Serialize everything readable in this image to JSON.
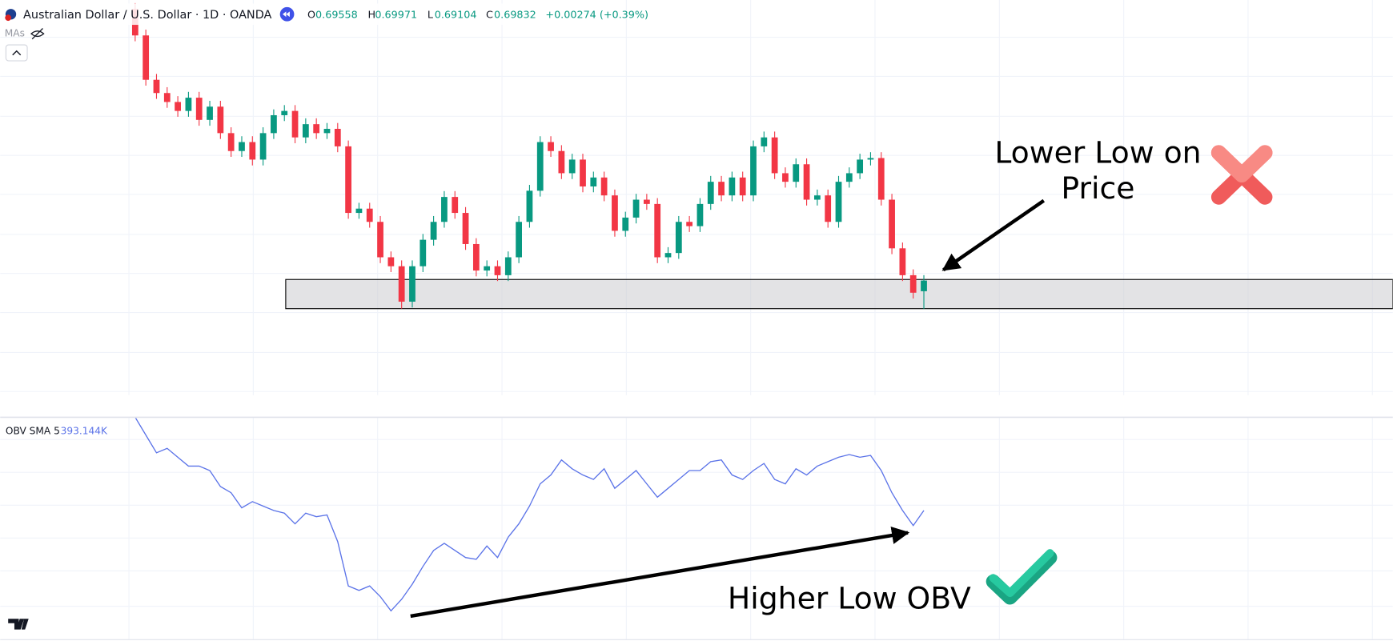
{
  "chart_data": [
    {
      "type": "candlestick",
      "title": "Australian Dollar / U.S. Dollar · 1D · OANDA",
      "indicator_label": "MAs",
      "ohlc_labels": [
        "O",
        "H",
        "L",
        "C"
      ],
      "change": "+0.00274 (+0.39%)",
      "up_color": "#089981",
      "down_color": "#f23645",
      "ylim": [
        0.6689,
        0.7704
      ],
      "grid": true,
      "open": [
        0.7681,
        0.7613,
        0.7499,
        0.7465,
        0.7442,
        0.7419,
        0.7453,
        0.7396,
        0.743,
        0.7362,
        0.7316,
        0.7339,
        0.7294,
        0.7362,
        0.7408,
        0.7419,
        0.7351,
        0.7385,
        0.7362,
        0.7373,
        0.7328,
        0.7157,
        0.7168,
        0.7134,
        0.7043,
        0.702,
        0.6929,
        0.702,
        0.7088,
        0.7134,
        0.7198,
        0.7157,
        0.7077,
        0.7009,
        0.702,
        0.6997,
        0.7043,
        0.7134,
        0.7214,
        0.7339,
        0.7316,
        0.7259,
        0.7294,
        0.7225,
        0.7248,
        0.7202,
        0.7111,
        0.7145,
        0.7191,
        0.718,
        0.7043,
        0.7054,
        0.7134,
        0.7123,
        0.718,
        0.7237,
        0.7202,
        0.7248,
        0.7202,
        0.7328,
        0.7351,
        0.7259,
        0.7237,
        0.7282,
        0.7191,
        0.7202,
        0.7134,
        0.7237,
        0.7259,
        0.7294,
        0.7298,
        0.7191,
        0.7066,
        0.6997,
        0.69558
      ],
      "high": [
        0.7696,
        0.7628,
        0.7514,
        0.748,
        0.7457,
        0.7468,
        0.7468,
        0.7445,
        0.7445,
        0.7377,
        0.7354,
        0.7354,
        0.7377,
        0.7423,
        0.7434,
        0.7434,
        0.74,
        0.74,
        0.7388,
        0.7388,
        0.7343,
        0.7183,
        0.7183,
        0.7149,
        0.7058,
        0.7035,
        0.7035,
        0.7103,
        0.7149,
        0.7213,
        0.7213,
        0.7172,
        0.7092,
        0.7035,
        0.7035,
        0.7058,
        0.7149,
        0.7229,
        0.7354,
        0.7354,
        0.7331,
        0.7309,
        0.7309,
        0.7263,
        0.7263,
        0.7217,
        0.716,
        0.7206,
        0.7206,
        0.7195,
        0.7069,
        0.7149,
        0.7149,
        0.7195,
        0.7252,
        0.7252,
        0.7263,
        0.7263,
        0.7343,
        0.7366,
        0.7366,
        0.7274,
        0.7297,
        0.7297,
        0.7217,
        0.7217,
        0.7252,
        0.7274,
        0.7309,
        0.7313,
        0.7313,
        0.7206,
        0.7081,
        0.7012,
        0.69971
      ],
      "low": [
        0.7598,
        0.7484,
        0.745,
        0.7427,
        0.7404,
        0.7404,
        0.7381,
        0.7381,
        0.7347,
        0.7301,
        0.7301,
        0.7279,
        0.7279,
        0.7347,
        0.7393,
        0.7336,
        0.7336,
        0.7347,
        0.7347,
        0.7313,
        0.7142,
        0.7142,
        0.7119,
        0.7028,
        0.7005,
        0.6911,
        0.6914,
        0.7005,
        0.7073,
        0.7119,
        0.7142,
        0.7062,
        0.6994,
        0.6994,
        0.6982,
        0.6982,
        0.7028,
        0.7119,
        0.7199,
        0.7301,
        0.7244,
        0.7244,
        0.721,
        0.721,
        0.7187,
        0.7096,
        0.7096,
        0.713,
        0.7165,
        0.7028,
        0.7028,
        0.7039,
        0.7108,
        0.7108,
        0.7165,
        0.7187,
        0.7187,
        0.7187,
        0.7187,
        0.7313,
        0.7244,
        0.7222,
        0.7222,
        0.7176,
        0.7176,
        0.7119,
        0.7119,
        0.7222,
        0.7244,
        0.7279,
        0.7176,
        0.7051,
        0.6982,
        0.6937,
        0.69104
      ],
      "close": [
        0.7613,
        0.7499,
        0.7465,
        0.7442,
        0.7419,
        0.7453,
        0.7396,
        0.743,
        0.7362,
        0.7316,
        0.7339,
        0.7294,
        0.7362,
        0.7408,
        0.7419,
        0.7351,
        0.7385,
        0.7362,
        0.7373,
        0.7328,
        0.7157,
        0.7168,
        0.7134,
        0.7043,
        0.702,
        0.6929,
        0.702,
        0.7088,
        0.7134,
        0.7198,
        0.7157,
        0.7077,
        0.7009,
        0.702,
        0.6997,
        0.7043,
        0.7134,
        0.7214,
        0.7339,
        0.7316,
        0.7259,
        0.7294,
        0.7225,
        0.7248,
        0.7202,
        0.7111,
        0.7145,
        0.7191,
        0.718,
        0.7043,
        0.7054,
        0.7134,
        0.7123,
        0.718,
        0.7237,
        0.7202,
        0.7248,
        0.7202,
        0.7328,
        0.7351,
        0.7259,
        0.7237,
        0.7282,
        0.7191,
        0.7202,
        0.7134,
        0.7237,
        0.7259,
        0.7294,
        0.7298,
        0.7191,
        0.7066,
        0.6997,
        0.6952,
        0.69832
      ],
      "support_zone": {
        "low": 0.6911,
        "high": 0.6986
      },
      "annotations": [
        {
          "lines": [
            "Lower Low on",
            "Price"
          ]
        }
      ]
    },
    {
      "type": "line",
      "name": "OBV SMA 5",
      "color": "#5b73e8",
      "ylim": [
        -1057000,
        1443000
      ],
      "grid": true,
      "last_value": {
        "value": 393144,
        "label": "393.144K"
      },
      "values": [
        1443000,
        1243000,
        1043000,
        1093000,
        993000,
        893000,
        893000,
        843000,
        663000,
        593000,
        423000,
        493000,
        443000,
        393000,
        363000,
        243000,
        363000,
        323000,
        343000,
        43000,
        -457000,
        -507000,
        -457000,
        -577000,
        -737000,
        -607000,
        -437000,
        -237000,
        -57000,
        23000,
        -57000,
        -137000,
        -157000,
        -7000,
        -137000,
        93000,
        243000,
        443000,
        693000,
        793000,
        963000,
        863000,
        793000,
        743000,
        863000,
        643000,
        743000,
        843000,
        693000,
        543000,
        643000,
        743000,
        843000,
        843000,
        943000,
        963000,
        793000,
        743000,
        843000,
        923000,
        743000,
        693000,
        863000,
        793000,
        893000,
        943000,
        993000,
        1023000,
        993000,
        1013000,
        843000,
        593000,
        393000,
        223000,
        393144
      ],
      "annotations": [
        {
          "lines": [
            "Higher Low OBV"
          ]
        }
      ]
    }
  ]
}
